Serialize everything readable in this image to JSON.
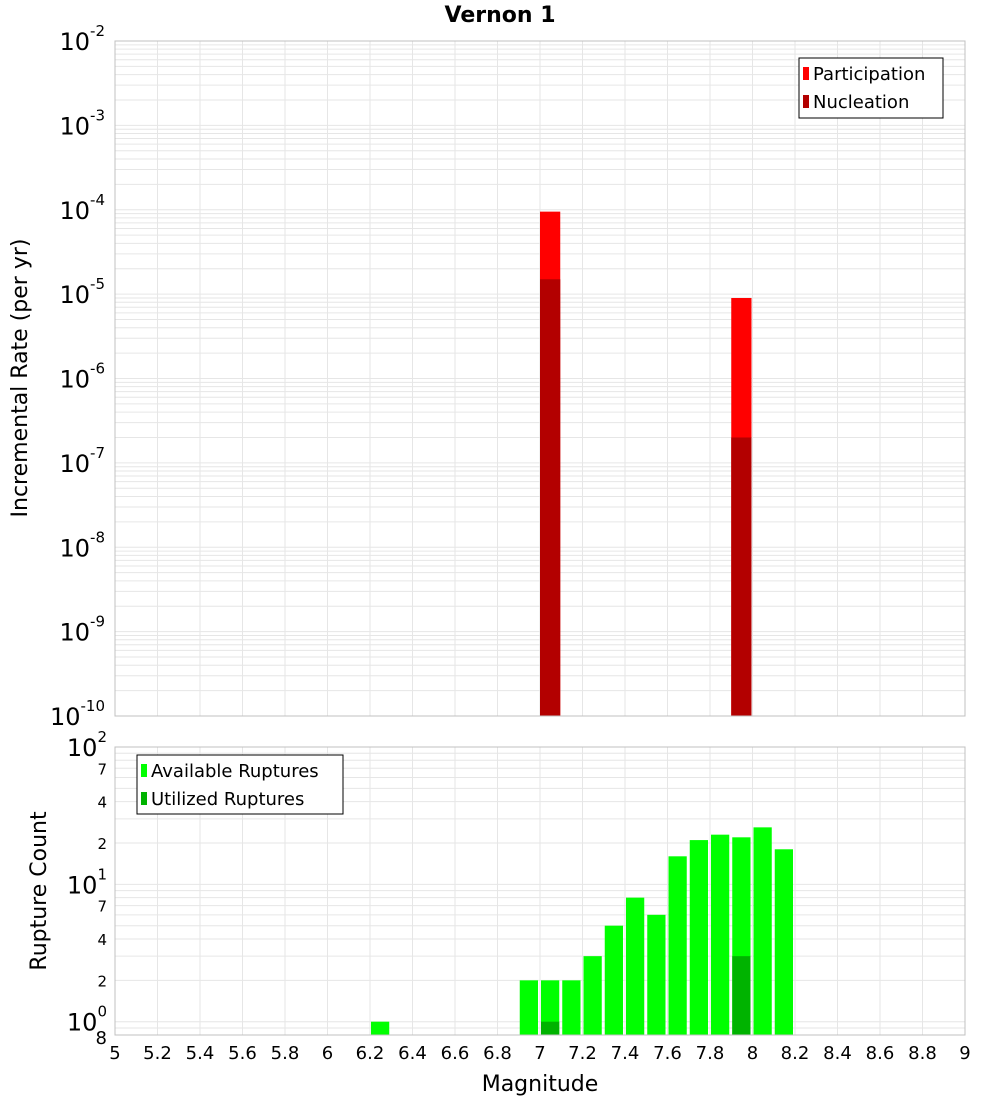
{
  "title": "Vernon 1",
  "colors": {
    "participation": "#ff0000",
    "nucleation": "#b30000",
    "available": "#00ff00",
    "utilized": "#00b300",
    "grid": "#e6e6e6",
    "frame": "#c0c0c0"
  },
  "chart_data": [
    {
      "type": "bar",
      "name": "incremental-rate",
      "ylabel": "Incremental Rate (per yr)",
      "yscale": "log",
      "ylim": [
        1e-10,
        0.01
      ],
      "xlim": [
        5,
        9
      ],
      "grid": true,
      "legend_position": "top-right",
      "y_major_ticks": [
        {
          "base": "10",
          "exp": "-10"
        },
        {
          "base": "10",
          "exp": "-9"
        },
        {
          "base": "10",
          "exp": "-8"
        },
        {
          "base": "10",
          "exp": "-7"
        },
        {
          "base": "10",
          "exp": "-6"
        },
        {
          "base": "10",
          "exp": "-5"
        },
        {
          "base": "10",
          "exp": "-4"
        },
        {
          "base": "10",
          "exp": "-3"
        },
        {
          "base": "10",
          "exp": "-2"
        }
      ],
      "series": [
        {
          "name": "Participation",
          "color": "#ff0000",
          "points": [
            {
              "x": 7.05,
              "y": 9.5e-05
            },
            {
              "x": 7.95,
              "y": 9e-06
            }
          ]
        },
        {
          "name": "Nucleation",
          "color": "#b30000",
          "points": [
            {
              "x": 7.05,
              "y": 1.5e-05
            },
            {
              "x": 7.95,
              "y": 2e-07
            }
          ]
        }
      ]
    },
    {
      "type": "bar",
      "name": "rupture-count",
      "ylabel": "Rupture Count",
      "xlabel": "Magnitude",
      "yscale": "log",
      "ylim": [
        0.8,
        100
      ],
      "xlim": [
        5,
        9
      ],
      "grid": true,
      "legend_position": "top-left",
      "y_major_ticks": [
        {
          "base": "10",
          "exp": "0",
          "value": 1
        },
        {
          "base": "10",
          "exp": "1",
          "value": 10
        },
        {
          "base": "10",
          "exp": "2",
          "value": 100
        }
      ],
      "y_minor_ticks": [
        {
          "label": "8",
          "value": 0.8
        },
        {
          "label": "2",
          "value": 2
        },
        {
          "label": "4",
          "value": 4
        },
        {
          "label": "7",
          "value": 7
        },
        {
          "label": "2",
          "value": 20
        },
        {
          "label": "4",
          "value": 40
        },
        {
          "label": "7",
          "value": 70
        }
      ],
      "x_ticks": [
        "5",
        "5.2",
        "5.4",
        "5.6",
        "5.8",
        "6",
        "6.2",
        "6.4",
        "6.6",
        "6.8",
        "7",
        "7.2",
        "7.4",
        "7.6",
        "7.8",
        "8",
        "8.2",
        "8.4",
        "8.6",
        "8.8",
        "9"
      ],
      "series": [
        {
          "name": "Available Ruptures",
          "color": "#00ff00",
          "points": [
            {
              "x": 6.25,
              "y": 1
            },
            {
              "x": 6.95,
              "y": 2
            },
            {
              "x": 7.05,
              "y": 2
            },
            {
              "x": 7.15,
              "y": 2
            },
            {
              "x": 7.25,
              "y": 3
            },
            {
              "x": 7.35,
              "y": 5
            },
            {
              "x": 7.45,
              "y": 8
            },
            {
              "x": 7.55,
              "y": 6
            },
            {
              "x": 7.65,
              "y": 16
            },
            {
              "x": 7.75,
              "y": 21
            },
            {
              "x": 7.85,
              "y": 23
            },
            {
              "x": 7.95,
              "y": 22
            },
            {
              "x": 8.05,
              "y": 26
            },
            {
              "x": 8.15,
              "y": 18
            }
          ]
        },
        {
          "name": "Utilized Ruptures",
          "color": "#00b300",
          "points": [
            {
              "x": 7.05,
              "y": 1
            },
            {
              "x": 7.95,
              "y": 3
            }
          ]
        }
      ]
    }
  ]
}
